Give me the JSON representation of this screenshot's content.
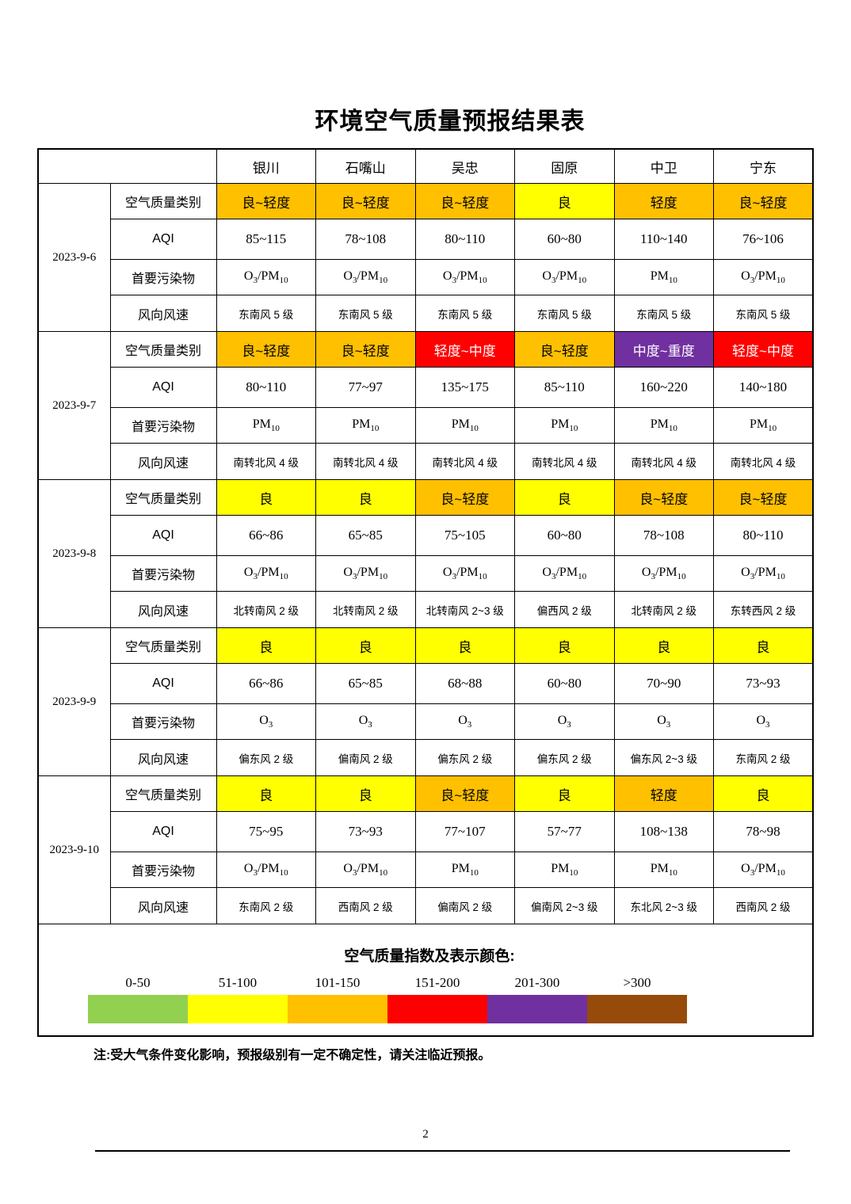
{
  "title": "环境空气质量预报结果表",
  "colors": {
    "green": "#92D050",
    "yellow": "#FFFF00",
    "orange": "#FFC000",
    "red": "#FF0000",
    "purple": "#7030A0",
    "brown": "#964B0A"
  },
  "dark_backgrounds": [
    "red",
    "purple"
  ],
  "table": {
    "cities": [
      "银川",
      "石嘴山",
      "吴忠",
      "固原",
      "中卫",
      "宁东"
    ],
    "row_labels": {
      "category": "空气质量类别",
      "aqi": "AQI",
      "pollutant": "首要污染物",
      "wind": "风向风速"
    },
    "groups": [
      {
        "date": "2023-9-6",
        "category": [
          {
            "text": "良~轻度",
            "color": "orange"
          },
          {
            "text": "良~轻度",
            "color": "orange"
          },
          {
            "text": "良~轻度",
            "color": "orange"
          },
          {
            "text": "良",
            "color": "yellow"
          },
          {
            "text": "轻度",
            "color": "orange"
          },
          {
            "text": "良~轻度",
            "color": "orange"
          }
        ],
        "aqi": [
          "85~115",
          "78~108",
          "80~110",
          "60~80",
          "110~140",
          "76~106"
        ],
        "pollutant": [
          "O3/PM10",
          "O3/PM10",
          "O3/PM10",
          "O3/PM10",
          "PM10",
          "O3/PM10"
        ],
        "wind": [
          "东南风 5 级",
          "东南风 5 级",
          "东南风 5 级",
          "东南风 5 级",
          "东南风 5 级",
          "东南风 5 级"
        ]
      },
      {
        "date": "2023-9-7",
        "category": [
          {
            "text": "良~轻度",
            "color": "orange"
          },
          {
            "text": "良~轻度",
            "color": "orange"
          },
          {
            "text": "轻度~中度",
            "color": "red"
          },
          {
            "text": "良~轻度",
            "color": "orange"
          },
          {
            "text": "中度~重度",
            "color": "purple"
          },
          {
            "text": "轻度~中度",
            "color": "red"
          }
        ],
        "aqi": [
          "80~110",
          "77~97",
          "135~175",
          "85~110",
          "160~220",
          "140~180"
        ],
        "pollutant": [
          "PM10",
          "PM10",
          "PM10",
          "PM10",
          "PM10",
          "PM10"
        ],
        "wind": [
          "南转北风 4 级",
          "南转北风 4 级",
          "南转北风 4 级",
          "南转北风 4 级",
          "南转北风 4 级",
          "南转北风 4 级"
        ]
      },
      {
        "date": "2023-9-8",
        "category": [
          {
            "text": "良",
            "color": "yellow"
          },
          {
            "text": "良",
            "color": "yellow"
          },
          {
            "text": "良~轻度",
            "color": "orange"
          },
          {
            "text": "良",
            "color": "yellow"
          },
          {
            "text": "良~轻度",
            "color": "orange"
          },
          {
            "text": "良~轻度",
            "color": "orange"
          }
        ],
        "aqi": [
          "66~86",
          "65~85",
          "75~105",
          "60~80",
          "78~108",
          "80~110"
        ],
        "pollutant": [
          "O3/PM10",
          "O3/PM10",
          "O3/PM10",
          "O3/PM10",
          "O3/PM10",
          "O3/PM10"
        ],
        "wind": [
          "北转南风 2 级",
          "北转南风 2 级",
          "北转南风 2~3 级",
          "偏西风 2 级",
          "北转南风 2 级",
          "东转西风 2 级"
        ]
      },
      {
        "date": "2023-9-9",
        "category": [
          {
            "text": "良",
            "color": "yellow"
          },
          {
            "text": "良",
            "color": "yellow"
          },
          {
            "text": "良",
            "color": "yellow"
          },
          {
            "text": "良",
            "color": "yellow"
          },
          {
            "text": "良",
            "color": "yellow"
          },
          {
            "text": "良",
            "color": "yellow"
          }
        ],
        "aqi": [
          "66~86",
          "65~85",
          "68~88",
          "60~80",
          "70~90",
          "73~93"
        ],
        "pollutant": [
          "O3",
          "O3",
          "O3",
          "O3",
          "O3",
          "O3"
        ],
        "wind": [
          "偏东风 2 级",
          "偏南风 2 级",
          "偏东风 2 级",
          "偏东风 2 级",
          "偏东风 2~3 级",
          "东南风 2 级"
        ]
      },
      {
        "date": "2023-9-10",
        "category": [
          {
            "text": "良",
            "color": "yellow"
          },
          {
            "text": "良",
            "color": "yellow"
          },
          {
            "text": "良~轻度",
            "color": "orange"
          },
          {
            "text": "良",
            "color": "yellow"
          },
          {
            "text": "轻度",
            "color": "orange"
          },
          {
            "text": "良",
            "color": "yellow"
          }
        ],
        "aqi": [
          "75~95",
          "73~93",
          "77~107",
          "57~77",
          "108~138",
          "78~98"
        ],
        "pollutant": [
          "O3/PM10",
          "O3/PM10",
          "PM10",
          "PM10",
          "PM10",
          "O3/PM10"
        ],
        "wind": [
          "东南风 2 级",
          "西南风 2 级",
          "偏南风 2 级",
          "偏南风 2~3 级",
          "东北风 2~3 级",
          "西南风 2 级"
        ]
      }
    ]
  },
  "legend": {
    "title": "空气质量指数及表示颜色:",
    "items": [
      {
        "range": "0-50",
        "color": "green"
      },
      {
        "range": "51-100",
        "color": "yellow"
      },
      {
        "range": "101-150",
        "color": "orange"
      },
      {
        "range": "151-200",
        "color": "red"
      },
      {
        "range": "201-300",
        "color": "purple"
      },
      {
        "range": ">300",
        "color": "brown"
      }
    ]
  },
  "note": "注:受大气条件变化影响，预报级别有一定不确定性，请关注临近预报。",
  "page_number": "2"
}
